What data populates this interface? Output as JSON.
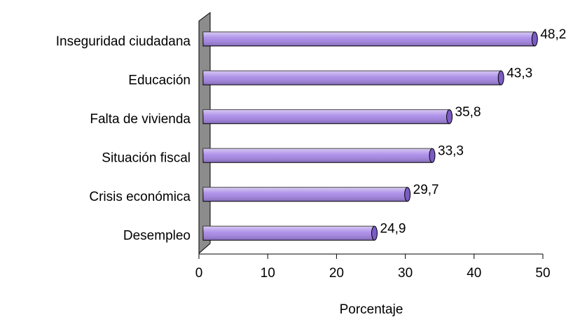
{
  "chart_data": {
    "type": "bar",
    "orientation": "horizontal",
    "categories": [
      "Inseguridad ciudadana",
      "Educación",
      "Falta de vivienda",
      "Situación fiscal",
      "Crisis económica",
      "Desempleo"
    ],
    "values": [
      48.2,
      43.3,
      35.8,
      33.3,
      29.7,
      24.9
    ],
    "value_labels": [
      "48,2",
      "43,3",
      "35,8",
      "33,3",
      "29,7",
      "24,9"
    ],
    "color": "#a585e6",
    "xlim": [
      0,
      50
    ],
    "xticks": [
      0,
      10,
      20,
      30,
      40,
      50
    ],
    "x_label": "Porcentaje"
  }
}
